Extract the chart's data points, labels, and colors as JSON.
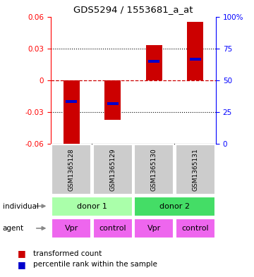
{
  "title": "GDS5294 / 1553681_a_at",
  "samples": [
    "GSM1365128",
    "GSM1365129",
    "GSM1365130",
    "GSM1365131"
  ],
  "bar_values": [
    -0.062,
    -0.037,
    0.033,
    0.055
  ],
  "percentile_values": [
    -0.02,
    -0.022,
    0.018,
    0.02
  ],
  "ylim_left": [
    -0.06,
    0.06
  ],
  "ylim_right": [
    0,
    100
  ],
  "yticks_left": [
    -0.06,
    -0.03,
    0,
    0.03,
    0.06
  ],
  "yticks_right": [
    0,
    25,
    50,
    75,
    100
  ],
  "yticklabels_left": [
    "-0.06",
    "-0.03",
    "0",
    "0.03",
    "0.06"
  ],
  "yticklabels_right": [
    "0",
    "25",
    "50",
    "75",
    "100%"
  ],
  "bar_color": "#cc0000",
  "percentile_color": "#0000cc",
  "zero_line_color": "#cc0000",
  "grid_color": "#000000",
  "donor1_color": "#aaffaa",
  "donor2_color": "#44dd66",
  "agent_color": "#ee66ee",
  "sample_bg_color": "#cccccc",
  "individuals": [
    "donor 1",
    "donor 1",
    "donor 2",
    "donor 2"
  ],
  "agents": [
    "Vpr",
    "control",
    "Vpr",
    "control"
  ],
  "legend_items": [
    "transformed count",
    "percentile rank within the sample"
  ],
  "bar_width": 0.4
}
